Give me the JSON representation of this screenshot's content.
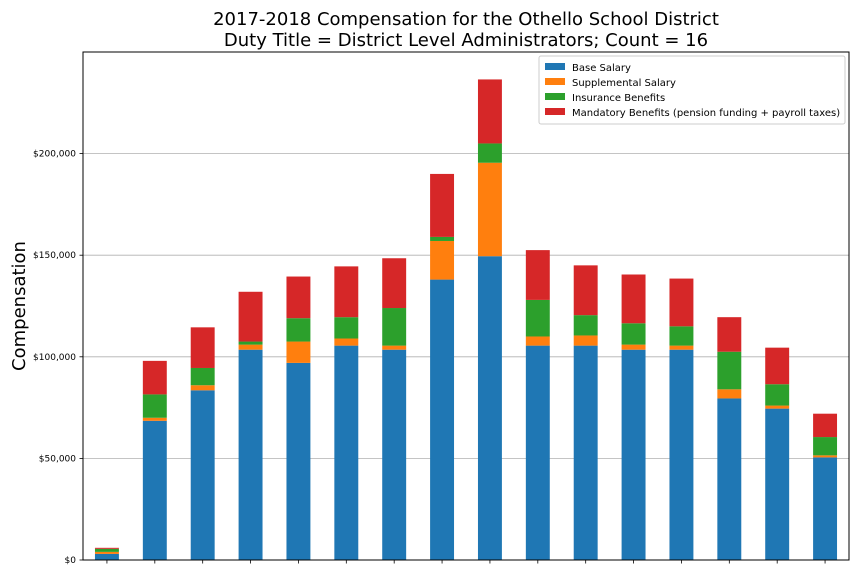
{
  "chart_data": {
    "type": "bar",
    "stacked": true,
    "title": "2017-2018 Compensation for the Othello School District",
    "subtitle": "Duty Title = District Level Administrators; Count = 16",
    "xlabel": "",
    "ylabel": "Compensation",
    "ylim": [
      0,
      250000
    ],
    "yticks": [
      0,
      50000,
      100000,
      150000,
      200000
    ],
    "ytick_labels": [
      "$0",
      "$50,000",
      "$100,000",
      "$150,000",
      "$200,000"
    ],
    "grid": "horizontal",
    "legend_position": "top-right",
    "categories": [
      "",
      "",
      "",
      "",
      "",
      "",
      "",
      "",
      "",
      "",
      "",
      "",
      "",
      "",
      "",
      ""
    ],
    "series": [
      {
        "name": "Base Salary",
        "color": "#1f77b4",
        "values": [
          3000,
          68500,
          83500,
          103500,
          97000,
          105500,
          103500,
          138000,
          149500,
          105500,
          105500,
          103500,
          103500,
          79500,
          74500,
          50500
        ]
      },
      {
        "name": "Supplemental Salary",
        "color": "#ff7f0e",
        "values": [
          1000,
          1500,
          2500,
          2500,
          10500,
          3500,
          2000,
          19000,
          46000,
          4500,
          5000,
          2500,
          2000,
          4500,
          1500,
          1000
        ]
      },
      {
        "name": "Insurance Benefits",
        "color": "#2ca02c",
        "values": [
          1500,
          11500,
          8500,
          1500,
          11500,
          10500,
          18500,
          2000,
          9500,
          18000,
          10000,
          10500,
          9500,
          18500,
          10500,
          9000
        ]
      },
      {
        "name": "Mandatory Benefits (pension funding + payroll taxes)",
        "color": "#d62728",
        "values": [
          500,
          16500,
          20000,
          24500,
          20500,
          25000,
          24500,
          31000,
          31500,
          24500,
          24500,
          24000,
          23500,
          17000,
          18000,
          11500
        ]
      }
    ]
  }
}
